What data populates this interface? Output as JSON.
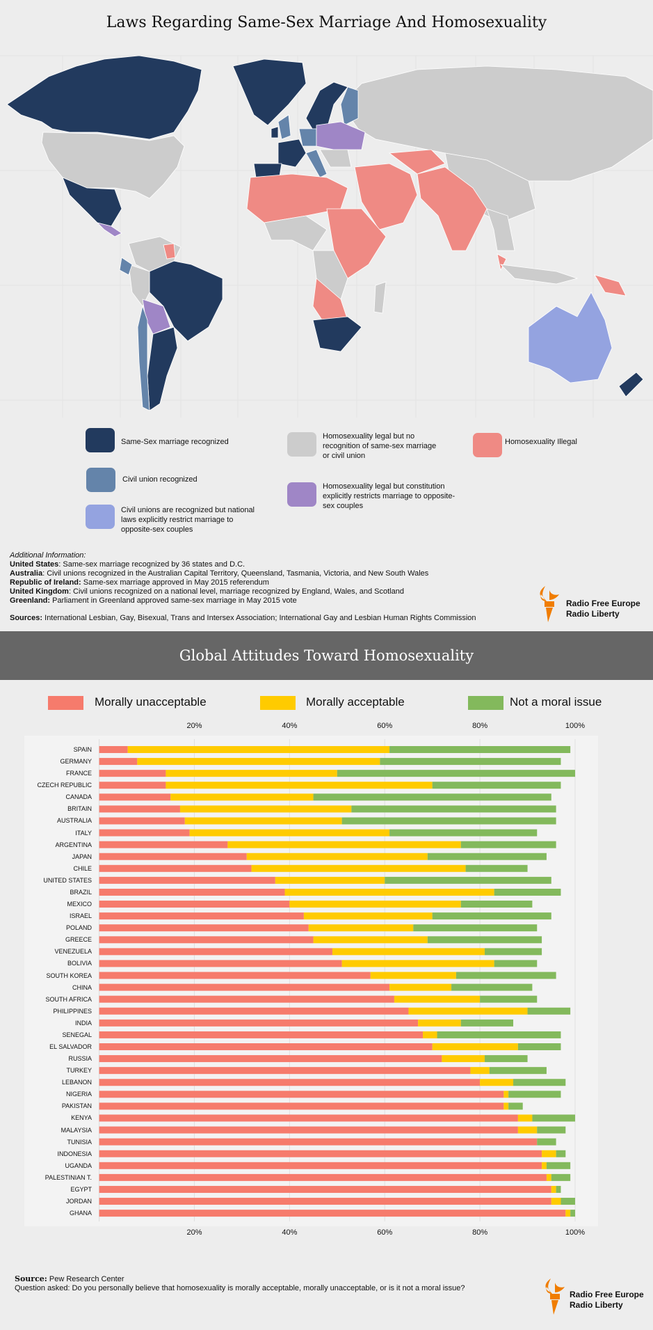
{
  "map": {
    "title": "Laws Regarding Same-Sex Marriage And Homosexuality",
    "legend": [
      {
        "label": "Same-Sex marriage recognized",
        "color": "#223a5e"
      },
      {
        "label": "Civil union recognized",
        "color": "#6484aa"
      },
      {
        "label": "Civil unions are recognized but national laws explicitly restrict marriage to opposite-sex couples",
        "color": "#94a3e0"
      },
      {
        "label": "Homosexuality legal but no recognition of same-sex marriage or civil union",
        "color": "#cccccc"
      },
      {
        "label": "Homosexuality legal but constitution explicitly restricts marriage to opposite-sex couples",
        "color": "#9f86c6"
      },
      {
        "label": "Homosexuality Illegal",
        "color": "#ef8a84"
      }
    ],
    "additional_info": {
      "heading": "Additional Information:",
      "items": [
        {
          "key": "United States",
          "text": ": Same-sex marriage recognized by 36 states and D.C."
        },
        {
          "key": "Australia",
          "text": ": Civil unions recognized in the Australian Capital Territory, Queensland, Tasmania, Victoria, and New South Wales"
        },
        {
          "key": "Republic of Ireland:",
          "text": " Same-sex marriage approved in May 2015 referendum"
        },
        {
          "key": "United Kingdom",
          "text": ": Civil unions recognized on a national level, marriage recognized by England, Wales, and Scotland"
        },
        {
          "key": "Greenland:",
          "text": " Parliament in Greenland approved same-sex marriage in May 2015 vote"
        }
      ],
      "sources_key": "Sources:",
      "sources_text": " International Lesbian, Gay, Bisexual, Trans and Intersex Association; International Gay and Lesbian Human Rights Commission"
    }
  },
  "logo": {
    "line1": "Radio Free Europe",
    "line2": "Radio Liberty",
    "color": "#f07d00"
  },
  "chart_data": {
    "type": "bar",
    "orientation": "horizontal-stacked",
    "title": "Global Attitudes Toward Homosexuality",
    "xlim": [
      0,
      100
    ],
    "x_ticks": [
      "20%",
      "40%",
      "60%",
      "80%",
      "100%"
    ],
    "grid": true,
    "legend_position": "top",
    "categories": [
      "SPAIN",
      "GERMANY",
      "FRANCE",
      "CZECH REPUBLIC",
      "CANADA",
      "BRITAIN",
      "AUSTRALIA",
      "ITALY",
      "ARGENTINA",
      "JAPAN",
      "CHILE",
      "UNITED STATES",
      "BRAZIL",
      "MEXICO",
      "ISRAEL",
      "POLAND",
      "GREECE",
      "VENEZUELA",
      "BOLIVIA",
      "SOUTH KOREA",
      "CHINA",
      "SOUTH AFRICA",
      "PHILIPPINES",
      "INDIA",
      "SENEGAL",
      "EL SALVADOR",
      "RUSSIA",
      "TURKEY",
      "LEBANON",
      "NIGERIA",
      "PAKISTAN",
      "KENYA",
      "MALAYSIA",
      "TUNISIA",
      "INDONESIA",
      "UGANDA",
      "PALESTINIAN T.",
      "EGYPT",
      "JORDAN",
      "GHANA"
    ],
    "series": [
      {
        "name": "Morally unacceptable",
        "color": "#f67b6c",
        "values": [
          6,
          8,
          14,
          14,
          15,
          17,
          18,
          19,
          27,
          31,
          32,
          37,
          39,
          40,
          43,
          44,
          45,
          49,
          51,
          57,
          61,
          62,
          65,
          67,
          68,
          70,
          72,
          78,
          80,
          85,
          85,
          88,
          88,
          92,
          93,
          93,
          94,
          95,
          95,
          98
        ]
      },
      {
        "name": "Morally acceptable",
        "color": "#ffcb00",
        "values": [
          55,
          51,
          36,
          56,
          30,
          36,
          33,
          42,
          49,
          38,
          45,
          23,
          44,
          36,
          27,
          22,
          24,
          32,
          32,
          18,
          13,
          18,
          25,
          9,
          3,
          18,
          9,
          4,
          7,
          1,
          1,
          3,
          4,
          0,
          3,
          1,
          1,
          1,
          2,
          1
        ]
      },
      {
        "name": "Not a moral issue",
        "color": "#83b95c",
        "values": [
          38,
          38,
          50,
          27,
          50,
          43,
          45,
          31,
          20,
          25,
          13,
          35,
          14,
          15,
          25,
          26,
          24,
          12,
          9,
          21,
          17,
          12,
          9,
          11,
          26,
          9,
          9,
          12,
          11,
          11,
          3,
          9,
          6,
          4,
          2,
          5,
          4,
          1,
          3,
          1
        ]
      }
    ]
  },
  "footer": {
    "source_key": "Source:",
    "source_text": " Pew Research Center",
    "question": "Question asked: Do you personally believe that homosexuality is morally acceptable, morally unacceptable, or is it not a moral issue?"
  }
}
